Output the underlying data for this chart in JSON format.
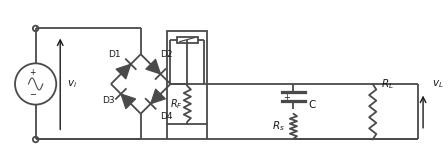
{
  "bg_color": "#ffffff",
  "line_color": "#4a4a4a",
  "line_width": 1.3,
  "text_color": "#1a1a1a",
  "fig_width": 4.48,
  "fig_height": 1.62,
  "dpi": 100,
  "xlim": [
    0,
    11.2
  ],
  "ylim": [
    0,
    4.05
  ]
}
